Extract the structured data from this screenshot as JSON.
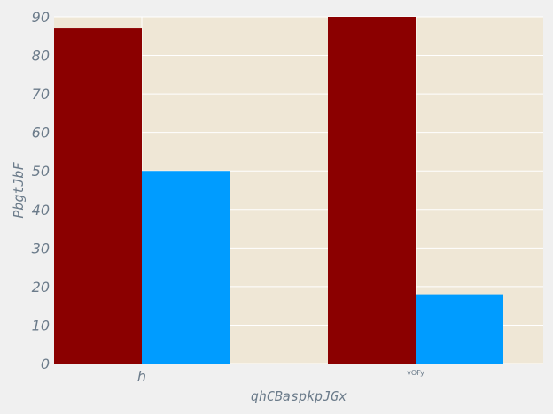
{
  "chart_data": {
    "type": "bar",
    "title": "",
    "xlabel": "qhCBaspkpJGx",
    "ylabel": "PbgtJbF",
    "categories": [
      "h",
      "vOFy"
    ],
    "series": [
      {
        "values": [
          87,
          90
        ],
        "color": "#8b0000"
      },
      {
        "values": [
          50,
          18
        ],
        "color": "#009cff"
      }
    ],
    "ylim": [
      0,
      90
    ],
    "yticks": [
      0,
      10,
      20,
      30,
      40,
      50,
      60,
      70,
      80,
      90
    ],
    "grid": true,
    "legend": "none",
    "plot_background": "#efe7d6",
    "grid_color": "#ffffff"
  }
}
